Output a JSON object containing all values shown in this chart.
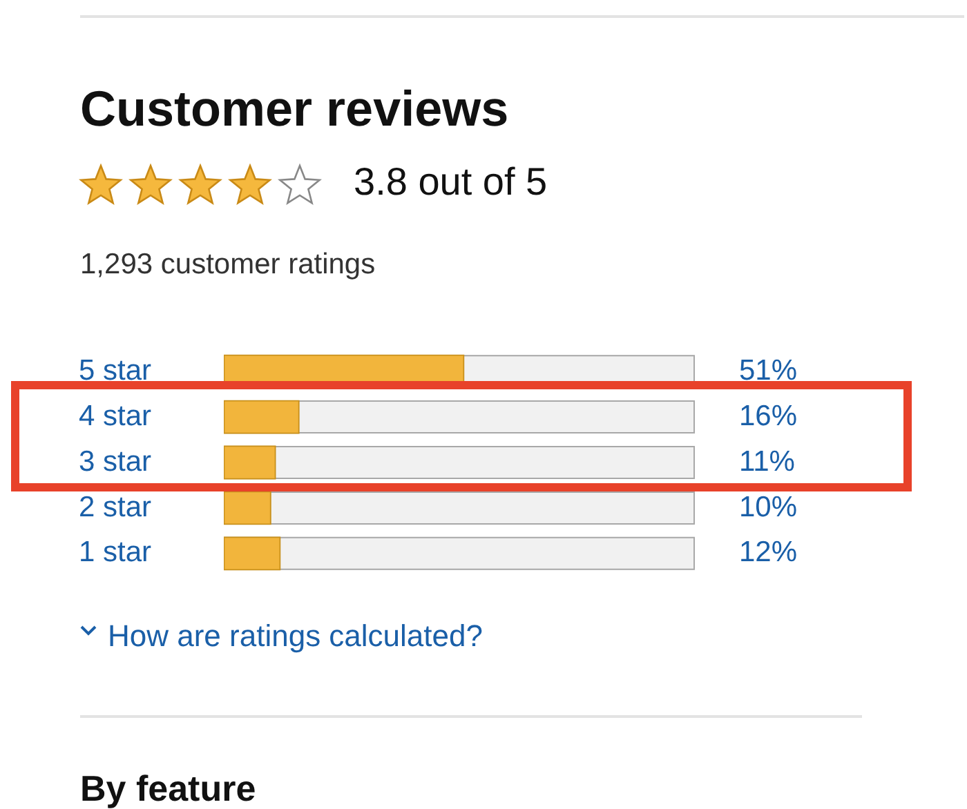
{
  "chart_data": {
    "type": "bar",
    "orientation": "horizontal",
    "title": "Customer reviews",
    "subtitle": "3.8 out of 5",
    "annotations": [
      "1,293 customer ratings",
      "How are ratings calculated?",
      "By feature"
    ],
    "categories": [
      "5 star",
      "4 star",
      "3 star",
      "2 star",
      "1 star"
    ],
    "values": [
      51,
      16,
      11,
      10,
      12
    ],
    "value_labels": [
      "51%",
      "16%",
      "11%",
      "10%",
      "12%"
    ],
    "color": "#f2b53c",
    "xlim": [
      0,
      100
    ],
    "tick_labels": "y"
  }
}
